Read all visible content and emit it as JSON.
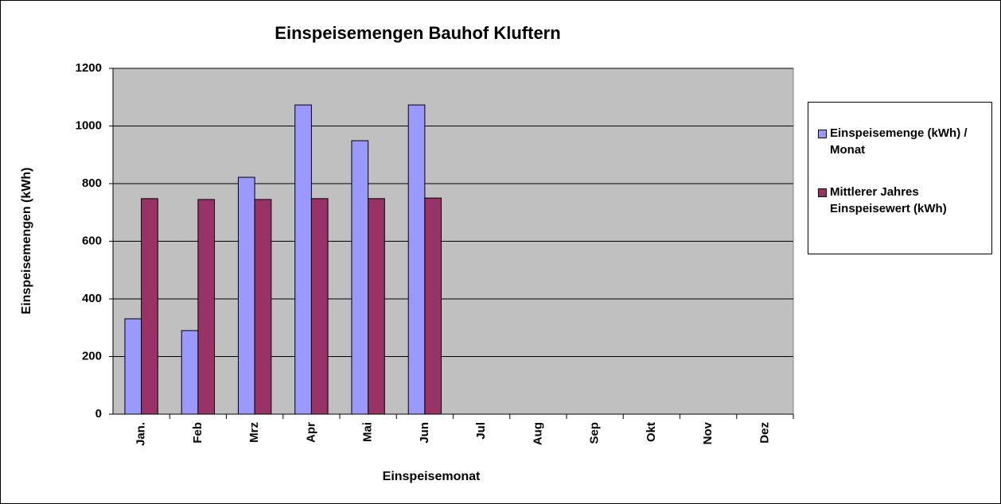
{
  "chart_data": {
    "type": "bar",
    "title": "Einspeisemengen Bauhof Kluftern",
    "x_label": "Einspeisemonat",
    "y_label": "Einspeisemengen (kWh)",
    "categories": [
      "Jan.",
      "Feb",
      "Mrz",
      "Apr",
      "Mai",
      "Jun",
      "Jul",
      "Aug",
      "Sep",
      "Okt",
      "Nov",
      "Dez"
    ],
    "series": [
      {
        "name": "Einspeisemenge (kWh) / Monat",
        "color": "#9999ff",
        "values": [
          331,
          290,
          822,
          1073,
          949,
          1073,
          null,
          null,
          null,
          null,
          null,
          null
        ]
      },
      {
        "name": "Mittlerer Jahres Einspeisewert (kWh)",
        "color": "#993366",
        "values": [
          748,
          745,
          745,
          748,
          748,
          750,
          null,
          null,
          null,
          null,
          null,
          null
        ]
      }
    ],
    "ylim": [
      0,
      1200
    ],
    "yticks": [
      0,
      200,
      400,
      600,
      800,
      1000,
      1200
    ],
    "grid": true,
    "legend": "right"
  }
}
